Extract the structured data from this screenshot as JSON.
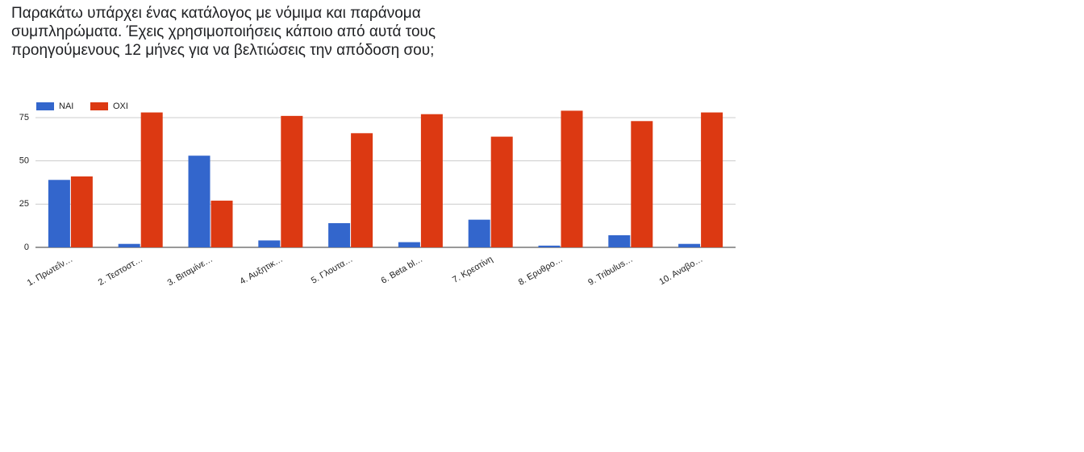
{
  "chart_data": {
    "type": "bar",
    "title": "Παρακάτω υπάρχει ένας κατάλογος με νόμιμα και παράνομα συμπληρώματα. Έχεις χρησιμοποιήσεις κάποιο από αυτά τους προηγούμενους 12 μήνες για να βελτιώσεις την απόδοση σου;",
    "categories": [
      "1. Πρωτεΐν…",
      "2. Τεστοστ…",
      "3. Βιταμίνε…",
      "4. Αυξητικ…",
      "5. Γλουτα…",
      "6. Beta bl…",
      "7. Κρεατίνη",
      "8. Ερυθρο…",
      "9. Tribulus…",
      "10. Αναβο…"
    ],
    "series": [
      {
        "name": "ΝΑΙ",
        "color": "#3366cc",
        "values": [
          39,
          2,
          53,
          4,
          14,
          3,
          16,
          1,
          7,
          2
        ]
      },
      {
        "name": "ΟΧΙ",
        "color": "#dc3912",
        "values": [
          41,
          78,
          27,
          76,
          66,
          77,
          64,
          79,
          73,
          78
        ]
      }
    ],
    "ylim": [
      0,
      80
    ],
    "yticks": [
      0,
      25,
      50,
      75
    ],
    "grid": true,
    "legend": "top-left"
  }
}
